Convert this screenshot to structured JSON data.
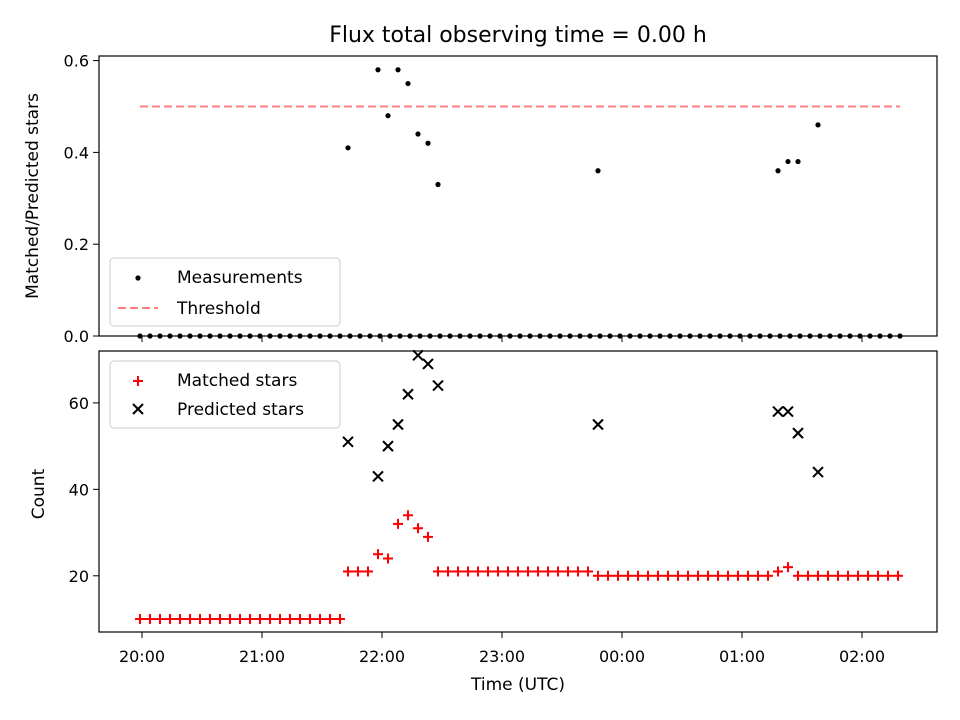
{
  "chart_data": [
    {
      "type": "scatter",
      "title": "Flux total observing time = 0.00 h",
      "ylabel": "Matched/Predicted stars",
      "xlabel": "",
      "ylim": [
        0,
        0.61
      ],
      "yticks": [
        "0.0",
        "0.2",
        "0.4",
        "0.6"
      ],
      "grid": false,
      "legend_position": "lower-left",
      "series": [
        {
          "name": "Measurements",
          "color": "#000000",
          "marker": "dot",
          "x": [
            "19:59",
            "20:04",
            "20:09",
            "20:14",
            "20:19",
            "20:24",
            "20:29",
            "20:34",
            "20:39",
            "20:44",
            "20:49",
            "20:54",
            "20:59",
            "21:04",
            "21:09",
            "21:14",
            "21:19",
            "21:24",
            "21:29",
            "21:34",
            "21:39",
            "21:44",
            "21:49",
            "21:54",
            "21:59",
            "22:04",
            "22:09",
            "22:14",
            "22:19",
            "22:24",
            "22:29",
            "22:34",
            "22:39",
            "22:44",
            "22:49",
            "22:54",
            "22:59",
            "23:04",
            "23:09",
            "23:14",
            "23:19",
            "23:24",
            "23:29",
            "23:34",
            "23:39",
            "23:44",
            "23:49",
            "23:54",
            "23:59",
            "00:04",
            "00:09",
            "00:14",
            "00:19",
            "00:24",
            "00:29",
            "00:34",
            "00:39",
            "00:44",
            "00:49",
            "00:54",
            "00:59",
            "01:04",
            "01:09",
            "01:14",
            "01:19",
            "01:24",
            "01:29",
            "01:34",
            "01:39",
            "01:44",
            "01:49",
            "01:54",
            "01:59",
            "02:04",
            "02:09",
            "02:14",
            "02:19",
            "21:43",
            "21:58",
            "22:03",
            "22:08",
            "22:13",
            "22:18",
            "22:23",
            "22:28",
            "23:48",
            "01:18",
            "01:23",
            "01:28",
            "01:38"
          ],
          "y": [
            0,
            0,
            0,
            0,
            0,
            0,
            0,
            0,
            0,
            0,
            0,
            0,
            0,
            0,
            0,
            0,
            0,
            0,
            0,
            0,
            0,
            0,
            0,
            0,
            0,
            0,
            0,
            0,
            0,
            0,
            0,
            0,
            0,
            0,
            0,
            0,
            0,
            0,
            0,
            0,
            0,
            0,
            0,
            0,
            0,
            0,
            0,
            0,
            0,
            0,
            0,
            0,
            0,
            0,
            0,
            0,
            0,
            0,
            0,
            0,
            0,
            0,
            0,
            0,
            0,
            0,
            0,
            0,
            0,
            0,
            0,
            0,
            0,
            0,
            0,
            0,
            0,
            0.41,
            0.58,
            0.48,
            0.58,
            0.55,
            0.44,
            0.42,
            0.33,
            0.36,
            0.36,
            0.38,
            0.38,
            0.46
          ]
        },
        {
          "name": "Threshold",
          "color": "#ff7f7f",
          "style": "dashed",
          "x": [
            "19:59",
            "02:19"
          ],
          "y": [
            0.5,
            0.5
          ]
        }
      ]
    },
    {
      "type": "scatter",
      "title": "",
      "ylabel": "Count",
      "xlabel": "Time (UTC)",
      "ylim": [
        7,
        72
      ],
      "yticks": [
        "20",
        "40",
        "60"
      ],
      "xticks": [
        "20:00",
        "21:00",
        "22:00",
        "23:00",
        "00:00",
        "01:00",
        "02:00"
      ],
      "grid": false,
      "legend_position": "upper-left",
      "series": [
        {
          "name": "Matched stars",
          "color": "#ff0000",
          "marker": "plus",
          "x": [
            "19:59",
            "20:04",
            "20:09",
            "20:14",
            "20:19",
            "20:24",
            "20:29",
            "20:34",
            "20:39",
            "20:44",
            "20:49",
            "20:54",
            "20:59",
            "21:04",
            "21:09",
            "21:14",
            "21:19",
            "21:24",
            "21:29",
            "21:34",
            "21:39",
            "21:43",
            "21:48",
            "21:53",
            "21:58",
            "22:03",
            "22:08",
            "22:13",
            "22:18",
            "22:23",
            "22:28",
            "22:33",
            "22:38",
            "22:43",
            "22:48",
            "22:53",
            "22:58",
            "23:03",
            "23:08",
            "23:13",
            "23:18",
            "23:23",
            "23:28",
            "23:33",
            "23:38",
            "23:43",
            "23:48",
            "23:53",
            "23:58",
            "00:03",
            "00:08",
            "00:13",
            "00:18",
            "00:23",
            "00:28",
            "00:33",
            "00:38",
            "00:43",
            "00:48",
            "00:53",
            "00:58",
            "01:03",
            "01:08",
            "01:13",
            "01:18",
            "01:23",
            "01:28",
            "01:33",
            "01:38",
            "01:43",
            "01:48",
            "01:53",
            "01:58",
            "02:03",
            "02:08",
            "02:13",
            "02:18"
          ],
          "y": [
            10,
            10,
            10,
            10,
            10,
            10,
            10,
            10,
            10,
            10,
            10,
            10,
            10,
            10,
            10,
            10,
            10,
            10,
            10,
            10,
            10,
            21,
            21,
            21,
            25,
            24,
            32,
            34,
            31,
            29,
            21,
            21,
            21,
            21,
            21,
            21,
            21,
            21,
            21,
            21,
            21,
            21,
            21,
            21,
            21,
            21,
            20,
            20,
            20,
            20,
            20,
            20,
            20,
            20,
            20,
            20,
            20,
            20,
            20,
            20,
            20,
            20,
            20,
            20,
            21,
            22,
            20,
            20,
            20,
            20,
            20,
            20,
            20,
            20,
            20,
            20,
            20
          ]
        },
        {
          "name": "Predicted stars",
          "color": "#000000",
          "marker": "x",
          "x": [
            "21:43",
            "21:58",
            "22:03",
            "22:08",
            "22:13",
            "22:18",
            "22:23",
            "22:28",
            "23:48",
            "01:18",
            "01:23",
            "01:28",
            "01:38"
          ],
          "y": [
            51,
            43,
            50,
            55,
            62,
            71,
            69,
            64,
            55,
            58,
            58,
            53,
            44
          ]
        }
      ]
    }
  ]
}
